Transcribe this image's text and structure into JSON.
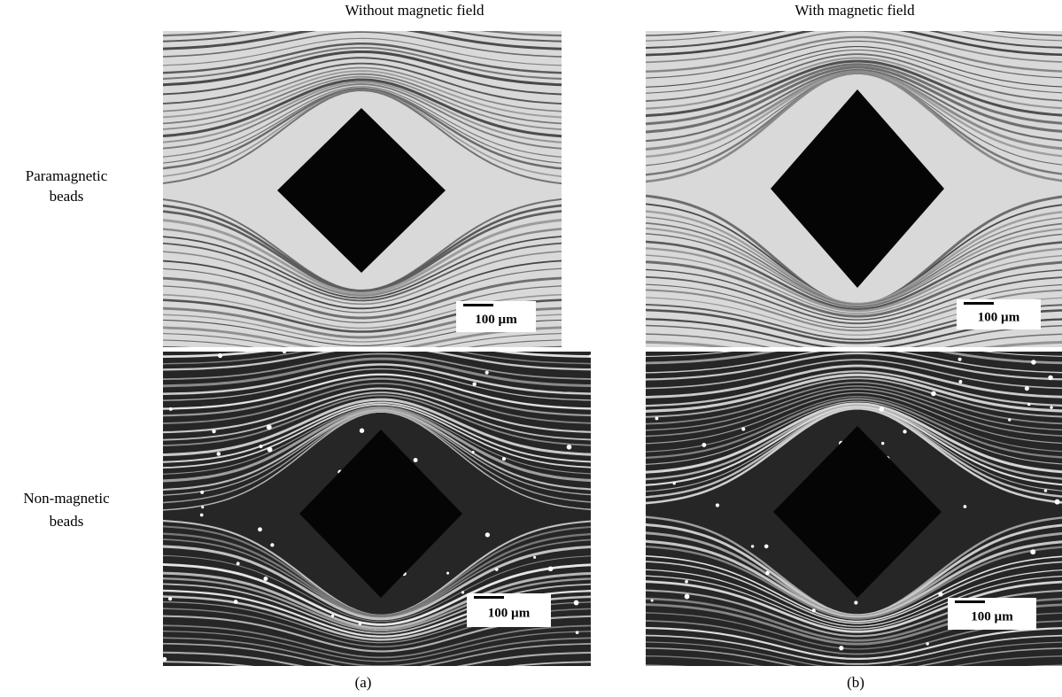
{
  "figure": {
    "column_headers": [
      "Without magnetic field",
      "With magnetic field"
    ],
    "row_labels": [
      [
        "Paramagnetic",
        "beads"
      ],
      [
        "Non-magnetic",
        "beads"
      ]
    ],
    "panels": [
      {
        "scale_bar": "100 µm"
      },
      {
        "scale_bar": "100 µm"
      },
      {
        "scale_bar": "100 µm"
      },
      {
        "scale_bar": "100 µm"
      }
    ],
    "captions": [
      "(a)",
      "(b)"
    ]
  }
}
